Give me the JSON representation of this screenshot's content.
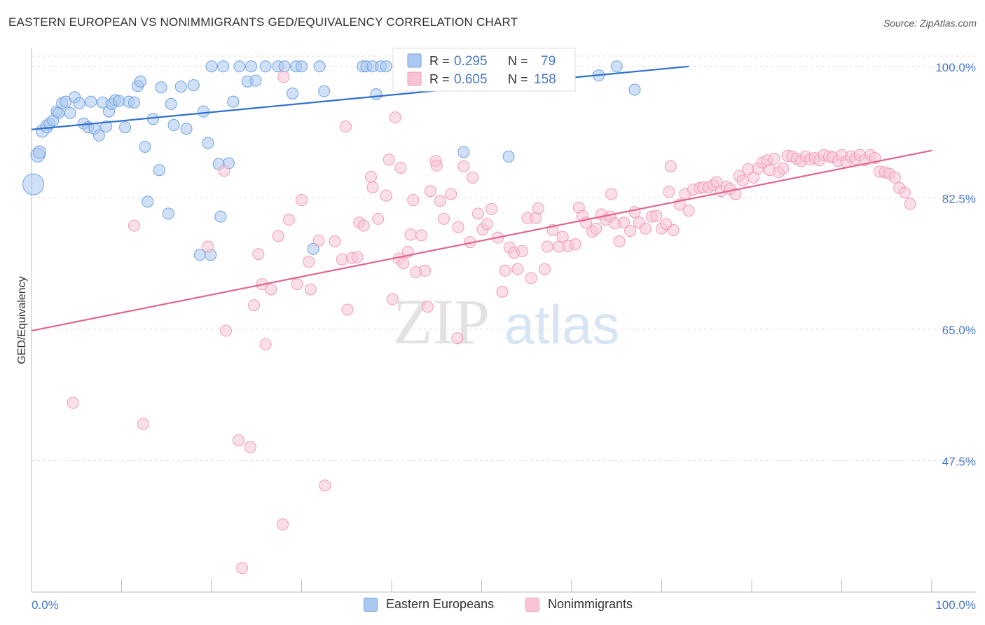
{
  "title": "EASTERN EUROPEAN VS NONIMMIGRANTS GED/EQUIVALENCY CORRELATION CHART",
  "source": "Source: ZipAtlas.com",
  "watermark": {
    "part1": "ZIP",
    "part2": "atlas"
  },
  "chart_data": {
    "type": "scatter",
    "ylabel": "GED/Equivalency",
    "xlim": [
      0,
      100
    ],
    "ylim": [
      30.0,
      102.5
    ],
    "x_tick_labels": {
      "left": "0.0%",
      "right": "100.0%"
    },
    "y_ticks": [
      {
        "value": 100.0,
        "label": "100.0%"
      },
      {
        "value": 82.5,
        "label": "82.5%"
      },
      {
        "value": 65.0,
        "label": "65.0%"
      },
      {
        "value": 47.5,
        "label": "47.5%"
      }
    ],
    "grid": true,
    "legend_position": "top",
    "stats": [
      {
        "r_label": "R =",
        "r_value": "0.295",
        "n_label": "N =",
        "n_value": "79",
        "color": "#6fa0e0"
      },
      {
        "r_label": "R =",
        "r_value": "0.605",
        "n_label": "N =",
        "n_value": "158",
        "color": "#f29ab6"
      }
    ],
    "series": [
      {
        "name": "Eastern Europeans",
        "color": "#6fa0e0",
        "fill": "#aac8f0",
        "trend": [
          [
            0,
            91.6
          ],
          [
            73,
            100.0
          ]
        ],
        "points": [
          [
            0.2,
            84.3,
            14
          ],
          [
            0.7,
            88.2,
            9
          ],
          [
            0.9,
            88.6,
            8
          ],
          [
            1.2,
            91.4,
            8
          ],
          [
            1.7,
            92.0,
            8
          ],
          [
            2.0,
            92.4,
            7
          ],
          [
            2.4,
            92.8,
            7
          ],
          [
            2.8,
            94.0,
            7
          ],
          [
            3.0,
            93.8,
            7
          ],
          [
            3.4,
            95.1,
            7
          ],
          [
            3.8,
            95.3,
            7
          ],
          [
            4.3,
            93.8,
            7
          ],
          [
            4.8,
            95.9,
            7
          ],
          [
            5.3,
            95.1,
            7
          ],
          [
            5.8,
            92.4,
            7
          ],
          [
            6.3,
            91.9,
            7
          ],
          [
            6.6,
            95.3,
            7
          ],
          [
            7.0,
            91.7,
            7
          ],
          [
            7.5,
            90.8,
            7
          ],
          [
            7.9,
            95.2,
            7
          ],
          [
            8.3,
            92.0,
            7
          ],
          [
            8.6,
            94.0,
            7
          ],
          [
            8.9,
            95.0,
            7
          ],
          [
            9.3,
            95.5,
            7
          ],
          [
            9.7,
            95.4,
            7
          ],
          [
            10.4,
            91.9,
            7
          ],
          [
            10.8,
            95.3,
            7
          ],
          [
            11.4,
            95.2,
            7
          ],
          [
            11.8,
            97.4,
            7
          ],
          [
            12.1,
            98.0,
            7
          ],
          [
            12.6,
            89.3,
            7
          ],
          [
            12.9,
            82.0,
            7
          ],
          [
            13.5,
            93.0,
            7
          ],
          [
            14.2,
            86.2,
            7
          ],
          [
            14.4,
            97.2,
            7
          ],
          [
            15.2,
            80.4,
            7
          ],
          [
            15.5,
            95.0,
            7
          ],
          [
            15.8,
            92.2,
            7
          ],
          [
            16.6,
            97.3,
            7
          ],
          [
            17.2,
            91.7,
            7
          ],
          [
            18.0,
            97.5,
            7
          ],
          [
            18.7,
            74.9,
            7
          ],
          [
            19.1,
            94.0,
            7
          ],
          [
            19.6,
            89.8,
            7
          ],
          [
            19.9,
            74.9,
            7
          ],
          [
            20.0,
            100.0,
            7
          ],
          [
            20.8,
            87.0,
            7
          ],
          [
            21.0,
            80.0,
            7
          ],
          [
            21.3,
            100.0,
            7
          ],
          [
            21.9,
            87.1,
            7
          ],
          [
            22.4,
            95.3,
            7
          ],
          [
            23.1,
            100.0,
            7
          ],
          [
            24.0,
            98.0,
            7
          ],
          [
            24.4,
            100.0,
            7
          ],
          [
            24.9,
            98.1,
            7
          ],
          [
            26.0,
            100.0,
            7
          ],
          [
            27.4,
            100.0,
            7
          ],
          [
            28.1,
            100.0,
            7
          ],
          [
            29.0,
            96.4,
            7
          ],
          [
            29.4,
            100.0,
            7
          ],
          [
            30.0,
            100.0,
            7
          ],
          [
            31.3,
            75.7,
            7
          ],
          [
            32.0,
            100.0,
            7
          ],
          [
            32.5,
            96.7,
            7
          ],
          [
            36.8,
            100.0,
            7
          ],
          [
            37.2,
            100.0,
            7
          ],
          [
            37.9,
            100.0,
            7
          ],
          [
            38.3,
            96.3,
            7
          ],
          [
            38.8,
            100.0,
            7
          ],
          [
            39.4,
            100.0,
            7
          ],
          [
            45.4,
            100.0,
            7
          ],
          [
            48.0,
            88.6,
            7
          ],
          [
            50.6,
            100.0,
            7
          ],
          [
            51.5,
            100.0,
            7
          ],
          [
            53.0,
            88.0,
            7
          ],
          [
            63.0,
            98.8,
            7
          ],
          [
            65.0,
            100.0,
            7
          ],
          [
            67.0,
            96.9,
            7
          ]
        ]
      },
      {
        "name": "Nonimmigrants",
        "color": "#f29ab6",
        "fill": "#f8c4d5",
        "trend": [
          [
            0,
            64.8
          ],
          [
            100,
            88.8
          ]
        ],
        "points": [
          [
            4.6,
            55.2,
            7
          ],
          [
            11.4,
            78.8,
            7
          ],
          [
            12.4,
            52.4,
            7
          ],
          [
            19.6,
            76.0,
            7
          ],
          [
            21.4,
            86.1,
            7
          ],
          [
            21.6,
            64.8,
            7
          ],
          [
            23.0,
            50.2,
            7
          ],
          [
            23.4,
            33.2,
            7
          ],
          [
            24.3,
            49.3,
            7
          ],
          [
            24.7,
            68.2,
            7
          ],
          [
            25.2,
            75.0,
            7
          ],
          [
            25.6,
            71.0,
            7
          ],
          [
            26.0,
            63.0,
            7
          ],
          [
            26.6,
            70.3,
            7
          ],
          [
            27.4,
            77.4,
            7
          ],
          [
            27.9,
            39.0,
            7
          ],
          [
            28.0,
            98.6,
            7
          ],
          [
            28.6,
            79.6,
            7
          ],
          [
            29.5,
            71.0,
            7
          ],
          [
            30.0,
            82.2,
            7
          ],
          [
            30.8,
            74.0,
            7
          ],
          [
            31.0,
            70.3,
            7
          ],
          [
            31.9,
            76.8,
            7
          ],
          [
            32.6,
            44.2,
            7
          ],
          [
            33.7,
            76.7,
            7
          ],
          [
            34.5,
            74.3,
            7
          ],
          [
            34.9,
            92.0,
            7
          ],
          [
            35.1,
            67.6,
            7
          ],
          [
            35.6,
            74.5,
            7
          ],
          [
            36.2,
            74.6,
            7
          ],
          [
            36.4,
            79.2,
            7
          ],
          [
            36.9,
            78.8,
            7
          ],
          [
            37.7,
            85.3,
            7
          ],
          [
            37.9,
            83.9,
            7
          ],
          [
            38.5,
            79.7,
            7
          ],
          [
            39.4,
            82.8,
            7
          ],
          [
            39.7,
            87.6,
            7
          ],
          [
            40.1,
            69.0,
            7
          ],
          [
            40.4,
            93.2,
            7
          ],
          [
            40.8,
            74.4,
            7
          ],
          [
            41.3,
            73.8,
            7
          ],
          [
            41.8,
            75.3,
            7
          ],
          [
            42.1,
            77.6,
            7
          ],
          [
            42.4,
            82.2,
            7
          ],
          [
            42.7,
            72.6,
            7
          ],
          [
            43.3,
            77.5,
            7
          ],
          [
            43.7,
            72.8,
            7
          ],
          [
            44.0,
            68.0,
            7
          ],
          [
            44.3,
            83.4,
            7
          ],
          [
            44.9,
            87.4,
            7
          ],
          [
            45.4,
            82.1,
            7
          ],
          [
            45.8,
            79.7,
            7
          ],
          [
            46.6,
            83.0,
            7
          ],
          [
            47.4,
            78.6,
            7
          ],
          [
            48.0,
            86.7,
            7
          ],
          [
            48.7,
            76.6,
            7
          ],
          [
            49.0,
            85.2,
            7
          ],
          [
            49.6,
            80.4,
            7
          ],
          [
            50.1,
            78.3,
            7
          ],
          [
            50.6,
            79.0,
            7
          ],
          [
            51.1,
            81.0,
            7
          ],
          [
            51.8,
            77.2,
            7
          ],
          [
            52.3,
            70.0,
            7
          ],
          [
            52.6,
            72.8,
            7
          ],
          [
            53.1,
            75.9,
            7
          ],
          [
            53.6,
            75.2,
            7
          ],
          [
            54.0,
            73.0,
            7
          ],
          [
            54.5,
            75.4,
            7
          ],
          [
            55.1,
            79.8,
            7
          ],
          [
            55.5,
            71.8,
            7
          ],
          [
            56.0,
            79.8,
            7
          ],
          [
            56.3,
            81.1,
            7
          ],
          [
            57.0,
            73.0,
            7
          ],
          [
            57.3,
            76.0,
            7
          ],
          [
            57.9,
            78.2,
            7
          ],
          [
            58.6,
            76.0,
            7
          ],
          [
            59.0,
            77.3,
            7
          ],
          [
            59.6,
            76.1,
            7
          ],
          [
            60.4,
            76.3,
            7
          ],
          [
            60.8,
            81.2,
            7
          ],
          [
            61.2,
            80.1,
            7
          ],
          [
            61.6,
            79.2,
            7
          ],
          [
            62.3,
            78.0,
            7
          ],
          [
            62.7,
            78.4,
            7
          ],
          [
            63.3,
            80.3,
            7
          ],
          [
            63.8,
            79.6,
            7
          ],
          [
            64.3,
            80.0,
            7
          ],
          [
            64.8,
            79.1,
            7
          ],
          [
            65.3,
            76.7,
            7
          ],
          [
            65.8,
            79.2,
            7
          ],
          [
            66.5,
            78.1,
            7
          ],
          [
            67.0,
            80.6,
            7
          ],
          [
            67.5,
            79.2,
            7
          ],
          [
            68.2,
            78.4,
            7
          ],
          [
            68.9,
            80.0,
            7
          ],
          [
            69.4,
            80.1,
            7
          ],
          [
            70.0,
            78.4,
            7
          ],
          [
            70.5,
            79.0,
            7
          ],
          [
            70.8,
            83.3,
            7
          ],
          [
            71.3,
            78.2,
            7
          ],
          [
            72.0,
            81.6,
            7
          ],
          [
            72.6,
            83.0,
            7
          ],
          [
            73.0,
            80.8,
            7
          ],
          [
            73.5,
            83.6,
            7
          ],
          [
            74.2,
            83.8,
            7
          ],
          [
            74.6,
            83.9,
            7
          ],
          [
            75.2,
            83.9,
            7
          ],
          [
            75.7,
            84.2,
            7
          ],
          [
            76.1,
            84.6,
            7
          ],
          [
            76.6,
            83.4,
            7
          ],
          [
            77.2,
            84.0,
            7
          ],
          [
            77.6,
            83.7,
            7
          ],
          [
            78.2,
            83.0,
            7
          ],
          [
            78.6,
            85.4,
            7
          ],
          [
            79.0,
            84.8,
            7
          ],
          [
            79.6,
            86.3,
            7
          ],
          [
            80.2,
            85.2,
            7
          ],
          [
            80.7,
            86.4,
            7
          ],
          [
            81.2,
            87.2,
            7
          ],
          [
            81.7,
            87.5,
            7
          ],
          [
            82.0,
            86.2,
            7
          ],
          [
            82.5,
            87.7,
            7
          ],
          [
            83.0,
            85.9,
            7
          ],
          [
            83.5,
            86.4,
            7
          ],
          [
            84.0,
            88.1,
            7
          ],
          [
            84.5,
            88.0,
            7
          ],
          [
            85.0,
            87.7,
            7
          ],
          [
            85.5,
            87.4,
            7
          ],
          [
            86.0,
            88.0,
            7
          ],
          [
            86.5,
            87.6,
            7
          ],
          [
            87.0,
            87.8,
            7
          ],
          [
            87.5,
            87.5,
            7
          ],
          [
            88.0,
            88.2,
            7
          ],
          [
            88.6,
            88.0,
            7
          ],
          [
            89.0,
            87.9,
            7
          ],
          [
            89.6,
            87.4,
            7
          ],
          [
            90.0,
            88.2,
            7
          ],
          [
            90.5,
            87.3,
            7
          ],
          [
            91.0,
            88.0,
            7
          ],
          [
            91.5,
            87.7,
            7
          ],
          [
            92.0,
            88.2,
            7
          ],
          [
            92.6,
            87.5,
            7
          ],
          [
            93.2,
            88.2,
            7
          ],
          [
            93.7,
            87.8,
            7
          ],
          [
            94.2,
            86.0,
            7
          ],
          [
            94.8,
            85.9,
            7
          ],
          [
            95.3,
            85.7,
            7
          ],
          [
            95.9,
            85.2,
            7
          ],
          [
            96.4,
            83.8,
            7
          ],
          [
            97.0,
            83.2,
            7
          ],
          [
            97.6,
            81.7,
            7
          ],
          [
            41.0,
            86.5,
            7
          ],
          [
            45.0,
            86.8,
            7
          ],
          [
            47.3,
            63.8,
            7
          ],
          [
            64.4,
            83.0,
            7
          ],
          [
            71.0,
            86.7,
            7
          ]
        ]
      }
    ]
  }
}
